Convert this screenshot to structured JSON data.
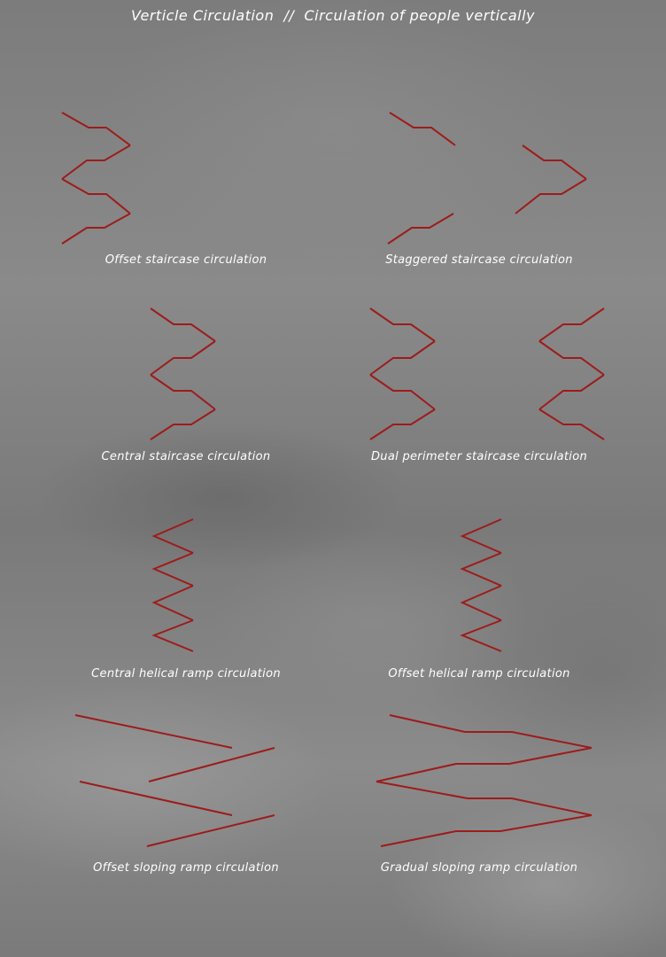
{
  "page": {
    "title": "Verticle Circulation  //  Circulation of people vertically"
  },
  "colors": {
    "floor": "#ffffff",
    "path": "#9e1b1b",
    "caption": "#ffffff"
  },
  "panels": [
    {
      "caption": "Offset staircase circulation"
    },
    {
      "caption": "Staggered staircase circulation"
    },
    {
      "caption": "Central staircase circulation"
    },
    {
      "caption": "Dual perimeter staircase circulation"
    },
    {
      "caption": "Central helical ramp circulation"
    },
    {
      "caption": "Offset helical ramp circulation"
    },
    {
      "caption": "Offset sloping ramp circulation"
    },
    {
      "caption": "Gradual sloping ramp circulation"
    }
  ]
}
